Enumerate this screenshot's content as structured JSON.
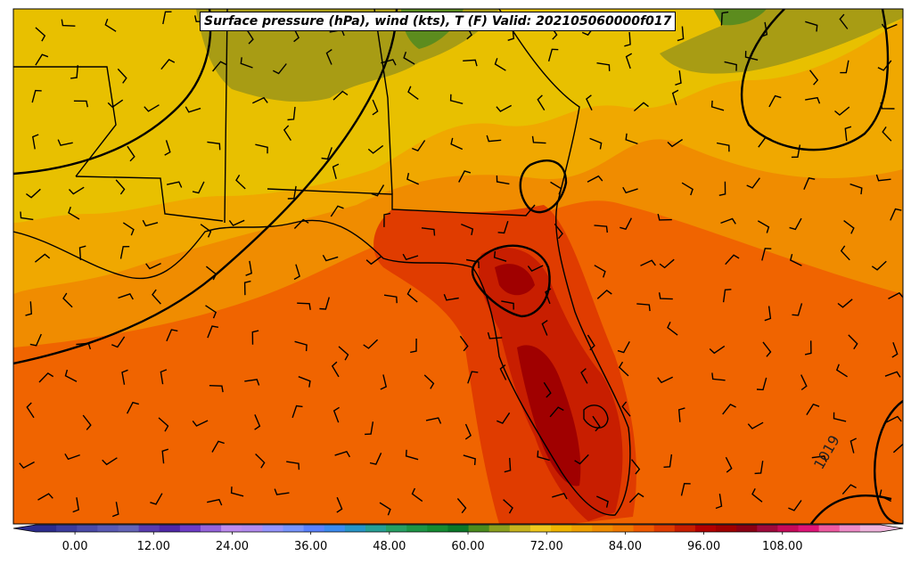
{
  "title": "Surface pressure (hPa), wind (kts), T (F) Valid: 202105060000f017",
  "isobar_label": "1019",
  "colorbar": {
    "ticks": [
      "0.00",
      "12.00",
      "24.00",
      "36.00",
      "48.00",
      "60.00",
      "72.00",
      "84.00",
      "96.00",
      "108.00"
    ],
    "colors": [
      "#2c2c8e",
      "#3c3c9e",
      "#4b4ba9",
      "#5a5ab5",
      "#6464b8",
      "#5a3cb0",
      "#5028a8",
      "#6e3cc8",
      "#9664dc",
      "#be8cf0",
      "#b48cf0",
      "#9696ff",
      "#7896ff",
      "#5a82ff",
      "#3c8cf0",
      "#2896c8",
      "#28a096",
      "#28a064",
      "#1e9646",
      "#148c32",
      "#0a7828",
      "#4b8c1e",
      "#8ca01e",
      "#c8b41e",
      "#f0c81e",
      "#f0b400",
      "#f0a000",
      "#f08c00",
      "#f07800",
      "#f05a00",
      "#e03c00",
      "#c81e00",
      "#b40000",
      "#a00000",
      "#8c0014",
      "#a00a3c",
      "#c80a5a",
      "#e01478",
      "#f05aa0",
      "#f08cc8",
      "#f0b4dc"
    ]
  },
  "map_colors": {
    "warm_orange": "#f06400",
    "orange": "#f08c00",
    "amber": "#f0a800",
    "yellow": "#e8c000",
    "olive": "#a89c14",
    "green": "#5c8c1e",
    "red_orange": "#e03c00",
    "red": "#c81e00",
    "dark_red": "#a00000"
  }
}
